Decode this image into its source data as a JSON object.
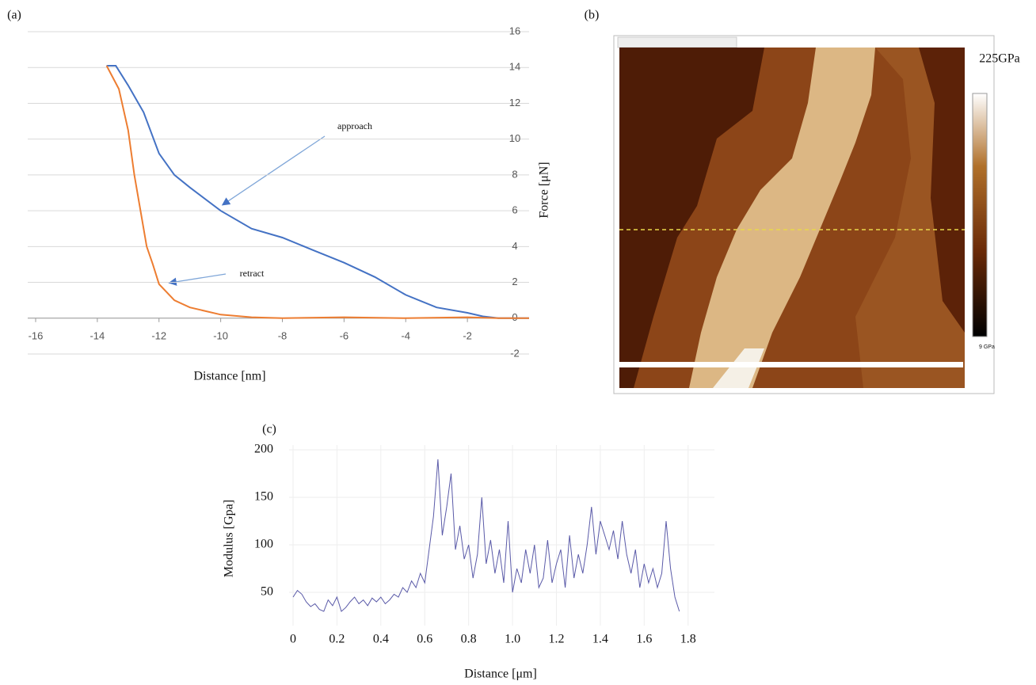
{
  "chart_data": [
    {
      "type": "line",
      "panel_label": "(a)",
      "x_label": "Distance [nm]",
      "y_label": "Force [μN]",
      "xlim": [
        -16,
        0
      ],
      "ylim": [
        -2,
        16
      ],
      "xticks": [
        -16,
        -14,
        -12,
        -10,
        -8,
        -6,
        -4,
        -2
      ],
      "yticks": [
        -2,
        0,
        2,
        4,
        6,
        8,
        10,
        12,
        14,
        16
      ],
      "grid": true,
      "series": [
        {
          "name": "approach",
          "color": "#4472c4",
          "x": [
            -13.7,
            -13.4,
            -13.0,
            -12.5,
            -12.0,
            -11.5,
            -11.0,
            -10.0,
            -9.0,
            -8.0,
            -7.0,
            -6.0,
            -5.0,
            -4.0,
            -3.0,
            -2.0,
            -1.5,
            -1.0,
            -0.5,
            0.0
          ],
          "values": [
            14.1,
            14.1,
            13.0,
            11.5,
            9.2,
            8.0,
            7.3,
            6.0,
            5.0,
            4.5,
            3.8,
            3.1,
            2.3,
            1.3,
            0.6,
            0.3,
            0.1,
            0.0,
            0.0,
            0.0
          ]
        },
        {
          "name": "retract",
          "color": "#ed7d31",
          "x": [
            -13.7,
            -13.3,
            -13.0,
            -12.8,
            -12.6,
            -12.4,
            -12.2,
            -12.0,
            -11.5,
            -11.0,
            -10.0,
            -9.0,
            -8.0,
            -6.0,
            -4.0,
            -2.0,
            -1.0,
            0.0
          ],
          "values": [
            14.1,
            12.8,
            10.5,
            8.0,
            6.0,
            4.0,
            3.0,
            1.9,
            1.0,
            0.6,
            0.2,
            0.05,
            0.0,
            0.05,
            0.0,
            0.05,
            0.0,
            0.0
          ]
        }
      ]
    },
    {
      "type": "image",
      "panel_label": "(b)",
      "colorbar_labels": [
        "225GPa",
        "9 GPa"
      ]
    },
    {
      "type": "line",
      "panel_label": "(c)",
      "x_label": "Distance [μm]",
      "y_label": "Modulus [Gpa]",
      "xlim": [
        0,
        1.92
      ],
      "ylim": [
        15,
        205
      ],
      "xticks": [
        0,
        0.2,
        0.4,
        0.6,
        0.8,
        {
          "value": 1,
          "label": "1.0"
        },
        1.2,
        1.4,
        1.6,
        1.8
      ],
      "yticks": [
        50,
        100,
        150,
        200
      ],
      "grid": true,
      "series": [
        {
          "color": "#5a5aa8",
          "x": [
            0,
            0.02,
            0.04,
            0.06,
            0.08,
            0.1,
            0.12,
            0.14,
            0.16,
            0.18,
            0.2,
            0.22,
            0.24,
            0.26,
            0.28,
            0.3,
            0.32,
            0.34,
            0.36,
            0.38,
            0.4,
            0.42,
            0.44,
            0.46,
            0.48,
            0.5,
            0.52,
            0.54,
            0.56,
            0.58,
            0.6,
            0.62,
            0.64,
            0.66,
            0.68,
            0.7,
            0.72,
            0.74,
            0.76,
            0.78,
            0.8,
            0.82,
            0.84,
            0.86,
            0.88,
            0.9,
            0.92,
            0.94,
            0.96,
            0.98,
            1.0,
            1.02,
            1.04,
            1.06,
            1.08,
            1.1,
            1.12,
            1.14,
            1.16,
            1.18,
            1.2,
            1.22,
            1.24,
            1.26,
            1.28,
            1.3,
            1.32,
            1.34,
            1.36,
            1.38,
            1.4,
            1.42,
            1.44,
            1.46,
            1.48,
            1.5,
            1.52,
            1.54,
            1.56,
            1.58,
            1.6,
            1.62,
            1.64,
            1.66,
            1.68,
            1.7,
            1.72,
            1.74,
            1.76
          ],
          "values": [
            45,
            52,
            48,
            40,
            35,
            38,
            32,
            30,
            42,
            36,
            45,
            30,
            34,
            40,
            45,
            38,
            42,
            36,
            44,
            40,
            45,
            38,
            42,
            48,
            45,
            55,
            50,
            62,
            55,
            70,
            60,
            95,
            130,
            190,
            110,
            140,
            175,
            95,
            120,
            85,
            100,
            65,
            90,
            150,
            80,
            105,
            70,
            95,
            60,
            125,
            50,
            75,
            60,
            95,
            70,
            100,
            55,
            65,
            105,
            60,
            80,
            95,
            55,
            110,
            65,
            90,
            70,
            100,
            140,
            90,
            125,
            110,
            95,
            115,
            85,
            125,
            90,
            70,
            95,
            55,
            80,
            60,
            75,
            55,
            70,
            125,
            75,
            45,
            30
          ]
        }
      ]
    }
  ]
}
